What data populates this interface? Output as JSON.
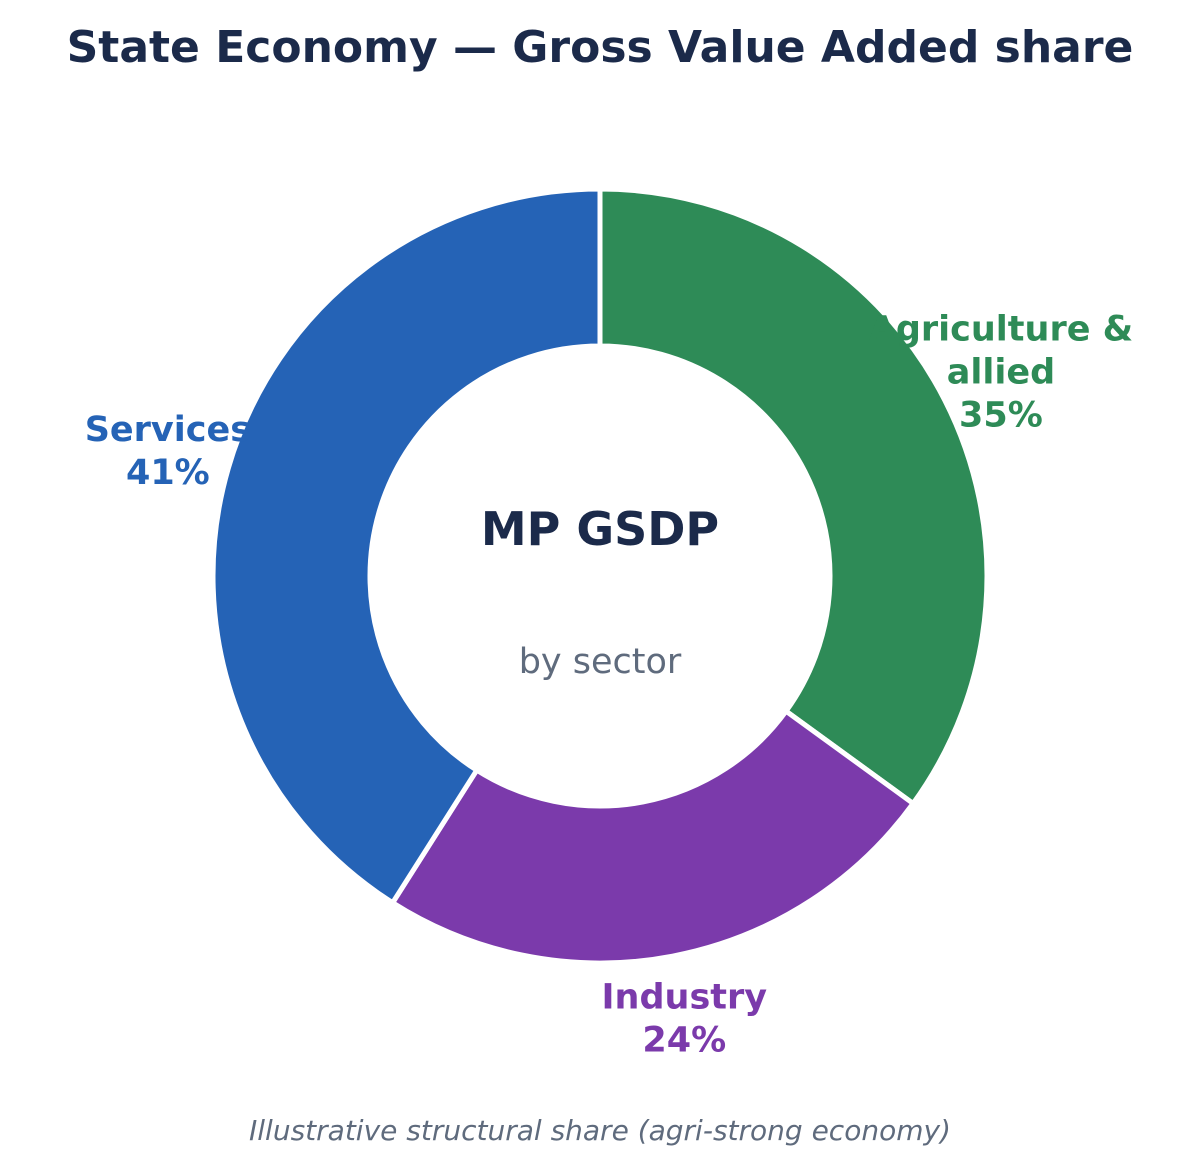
{
  "chart_data": {
    "type": "pie",
    "title": "State Economy — Gross Value Added share",
    "center_title": "MP GSDP",
    "center_subtitle": "by sector",
    "footnote": "Illustrative structural share (agri-strong economy)",
    "slices": [
      {
        "label": "Agriculture & allied",
        "label_lines": [
          "Agriculture &",
          "allied"
        ],
        "value": 35,
        "value_label": "35%",
        "color": "#2e8b57"
      },
      {
        "label": "Industry",
        "label_lines": [
          "Industry"
        ],
        "value": 24,
        "value_label": "24%",
        "color": "#7b3aab"
      },
      {
        "label": "Services",
        "label_lines": [
          "Services"
        ],
        "value": 41,
        "value_label": "41%",
        "color": "#2563b6"
      }
    ]
  }
}
